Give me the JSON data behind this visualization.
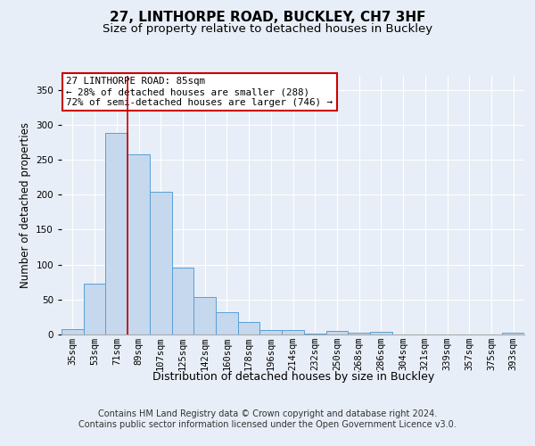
{
  "title_line1": "27, LINTHORPE ROAD, BUCKLEY, CH7 3HF",
  "title_line2": "Size of property relative to detached houses in Buckley",
  "xlabel": "Distribution of detached houses by size in Buckley",
  "ylabel": "Number of detached properties",
  "categories": [
    "35sqm",
    "53sqm",
    "71sqm",
    "89sqm",
    "107sqm",
    "125sqm",
    "142sqm",
    "160sqm",
    "178sqm",
    "196sqm",
    "214sqm",
    "232sqm",
    "250sqm",
    "268sqm",
    "286sqm",
    "304sqm",
    "321sqm",
    "339sqm",
    "357sqm",
    "375sqm",
    "393sqm"
  ],
  "values": [
    8,
    73,
    288,
    258,
    204,
    96,
    53,
    32,
    18,
    7,
    7,
    1,
    5,
    3,
    4,
    0,
    0,
    0,
    0,
    0,
    3
  ],
  "bar_color": "#c5d8ed",
  "bar_edge_color": "#5a9fd4",
  "highlight_index": 2,
  "highlight_line_color": "#cc0000",
  "ylim": [
    0,
    370
  ],
  "yticks": [
    0,
    50,
    100,
    150,
    200,
    250,
    300,
    350
  ],
  "annotation_text": "27 LINTHORPE ROAD: 85sqm\n← 28% of detached houses are smaller (288)\n72% of semi-detached houses are larger (746) →",
  "annotation_box_color": "#ffffff",
  "annotation_box_edge": "#cc0000",
  "footer_line1": "Contains HM Land Registry data © Crown copyright and database right 2024.",
  "footer_line2": "Contains public sector information licensed under the Open Government Licence v3.0.",
  "background_color": "#e8eef7",
  "plot_bg_color": "#e8eef7",
  "grid_color": "#ffffff",
  "title_fontsize": 11,
  "subtitle_fontsize": 9.5,
  "axis_label_fontsize": 8.5,
  "tick_fontsize": 7.5,
  "footer_fontsize": 7
}
